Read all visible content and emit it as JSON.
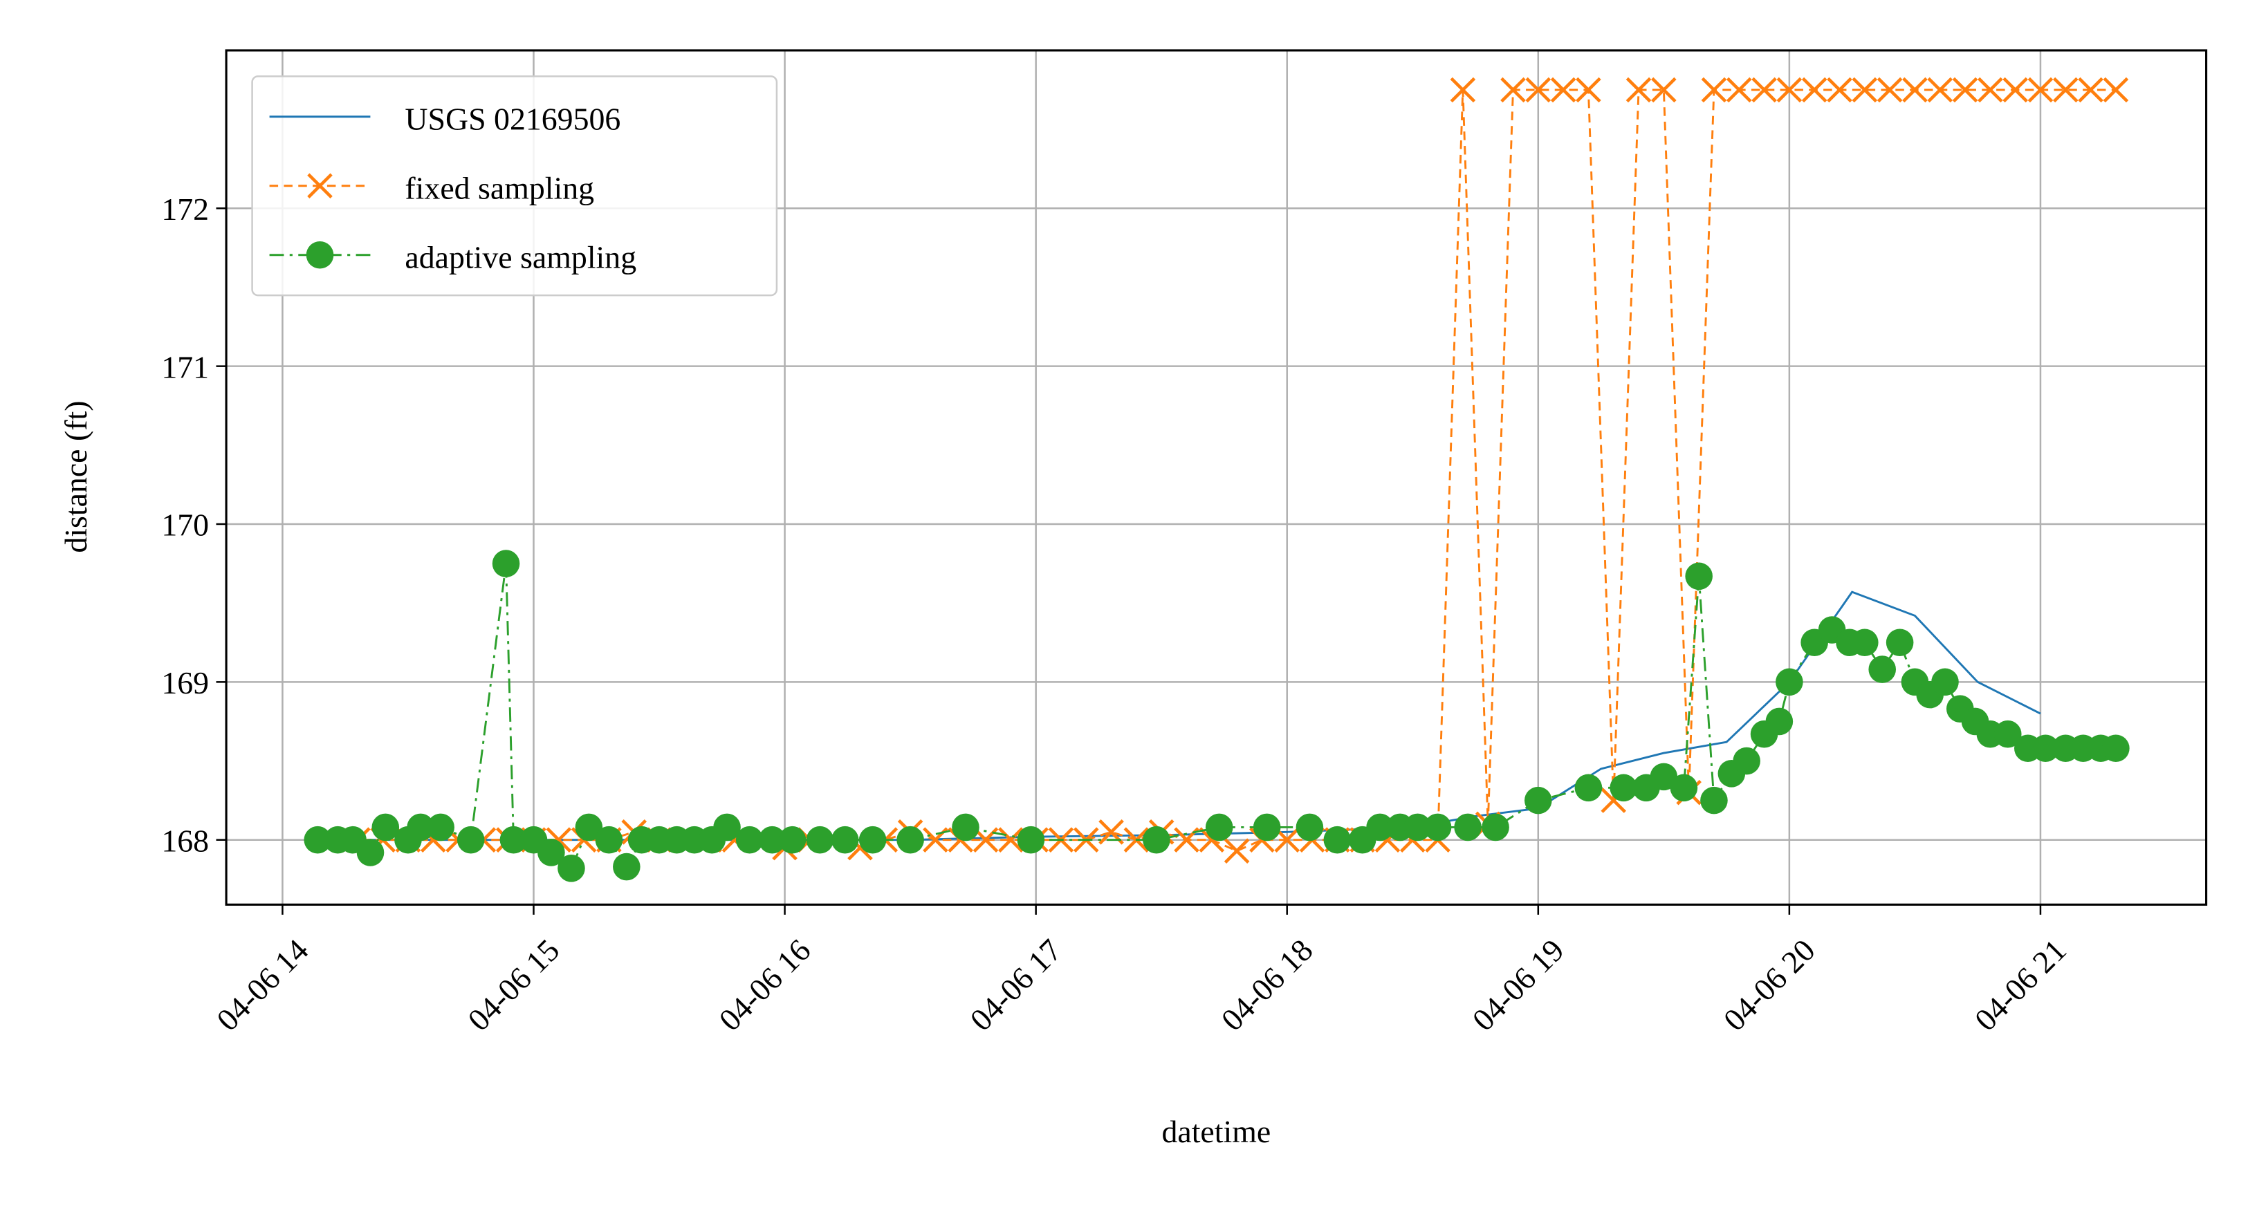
{
  "chart_data": {
    "type": "line",
    "xlabel": "datetime",
    "ylabel": "distance (ft)",
    "xlim": [
      13.776,
      21.66
    ],
    "ylim": [
      167.59,
      173.0
    ],
    "xticks": [
      {
        "value": 14,
        "label": "04-06 14"
      },
      {
        "value": 15,
        "label": "04-06 15"
      },
      {
        "value": 16,
        "label": "04-06 16"
      },
      {
        "value": 17,
        "label": "04-06 17"
      },
      {
        "value": 18,
        "label": "04-06 18"
      },
      {
        "value": 19,
        "label": "04-06 19"
      },
      {
        "value": 20,
        "label": "04-06 20"
      },
      {
        "value": 21,
        "label": "04-06 21"
      }
    ],
    "yticks": [
      168,
      169,
      170,
      171,
      172
    ],
    "grid": true,
    "legend": "upper left",
    "series": [
      {
        "name": "USGS 02169506",
        "color": "#1f77b4",
        "style": "solid",
        "marker": "none",
        "x": [
          14.25,
          14.5,
          15,
          15.5,
          16,
          16.5,
          17,
          17.5,
          18,
          18.5,
          18.75,
          19,
          19.25,
          19.5,
          19.75,
          20,
          20.25,
          20.5,
          20.75,
          21
        ],
        "values": [
          168.0,
          168.0,
          168.0,
          168.0,
          168.0,
          168.0,
          168.02,
          168.03,
          168.05,
          168.08,
          168.15,
          168.2,
          168.45,
          168.55,
          168.62,
          169.0,
          169.57,
          169.42,
          169.0,
          168.8
        ]
      },
      {
        "name": "fixed sampling",
        "color": "#ff7f0e",
        "style": "dashed",
        "marker": "x",
        "x": [
          14.2,
          14.3,
          14.4,
          14.5,
          14.6,
          14.7,
          14.8,
          14.9,
          15.0,
          15.1,
          15.2,
          15.3,
          15.4,
          15.5,
          15.6,
          15.7,
          15.8,
          15.9,
          16.0,
          16.1,
          16.2,
          16.3,
          16.4,
          16.5,
          16.6,
          16.7,
          16.8,
          16.9,
          17.0,
          17.1,
          17.2,
          17.3,
          17.4,
          17.5,
          17.6,
          17.7,
          17.8,
          17.9,
          18.0,
          18.1,
          18.2,
          18.3,
          18.4,
          18.5,
          18.6,
          18.7,
          18.8,
          18.9,
          19.0,
          19.1,
          19.2,
          19.3,
          19.4,
          19.5,
          19.6,
          19.7,
          19.8,
          19.9,
          20.0,
          20.1,
          20.2,
          20.3,
          20.4,
          20.5,
          20.6,
          20.7,
          20.8,
          20.9,
          21.0,
          21.1,
          21.2,
          21.3
        ],
        "values": [
          168.0,
          168.0,
          168.0,
          168.0,
          168.0,
          168.0,
          168.0,
          168.0,
          168.0,
          168.0,
          168.0,
          168.0,
          168.05,
          168.0,
          168.0,
          168.0,
          168.0,
          168.0,
          167.95,
          168.0,
          168.0,
          167.95,
          168.0,
          168.05,
          168.0,
          168.0,
          168.0,
          168.0,
          168.0,
          168.0,
          168.0,
          168.05,
          168.0,
          168.05,
          168.0,
          168.0,
          167.93,
          168.0,
          168.0,
          168.0,
          168.0,
          168.0,
          168.0,
          168.0,
          168.0,
          172.75,
          168.1,
          172.75,
          172.75,
          172.75,
          172.75,
          168.25,
          172.75,
          172.75,
          168.3,
          172.75,
          172.75,
          172.75,
          172.75,
          172.75,
          172.75,
          172.75,
          172.75,
          172.75,
          172.75,
          172.75,
          172.75,
          172.75,
          172.75,
          172.75,
          172.75,
          172.75
        ]
      },
      {
        "name": "adaptive sampling",
        "color": "#2ca02c",
        "style": "dashdot",
        "marker": "o",
        "x": [
          14.14,
          14.22,
          14.28,
          14.35,
          14.41,
          14.5,
          14.55,
          14.63,
          14.75,
          14.89,
          14.92,
          15.0,
          15.07,
          15.15,
          15.22,
          15.3,
          15.37,
          15.43,
          15.5,
          15.57,
          15.64,
          15.71,
          15.77,
          15.86,
          15.95,
          16.03,
          16.14,
          16.24,
          16.35,
          16.5,
          16.72,
          16.98,
          17.48,
          17.73,
          17.92,
          18.09,
          18.2,
          18.3,
          18.37,
          18.45,
          18.52,
          18.6,
          18.72,
          18.83,
          19.0,
          19.2,
          19.34,
          19.43,
          19.5,
          19.58,
          19.64,
          19.7,
          19.77,
          19.83,
          19.9,
          19.96,
          20.0,
          20.1,
          20.17,
          20.24,
          20.3,
          20.37,
          20.44,
          20.5,
          20.56,
          20.62,
          20.68,
          20.74,
          20.8,
          20.87,
          20.95,
          21.02,
          21.1,
          21.17,
          21.24,
          21.3
        ],
        "values": [
          168.0,
          168.0,
          168.0,
          167.92,
          168.08,
          168.0,
          168.08,
          168.08,
          168.0,
          169.75,
          168.0,
          168.0,
          167.92,
          167.82,
          168.08,
          168.0,
          167.83,
          168.0,
          168.0,
          168.0,
          168.0,
          168.0,
          168.08,
          168.0,
          168.0,
          168.0,
          168.0,
          168.0,
          168.0,
          168.0,
          168.08,
          168.0,
          168.0,
          168.08,
          168.08,
          168.08,
          168.0,
          168.0,
          168.08,
          168.08,
          168.08,
          168.08,
          168.08,
          168.08,
          168.25,
          168.33,
          168.33,
          168.33,
          168.4,
          168.33,
          169.67,
          168.25,
          168.42,
          168.5,
          168.67,
          168.75,
          169.0,
          169.25,
          169.33,
          169.25,
          169.25,
          169.08,
          169.25,
          169.0,
          168.92,
          169.0,
          168.83,
          168.75,
          168.67,
          168.67,
          168.58,
          168.58,
          168.58,
          168.58,
          168.58,
          168.58
        ]
      }
    ]
  }
}
